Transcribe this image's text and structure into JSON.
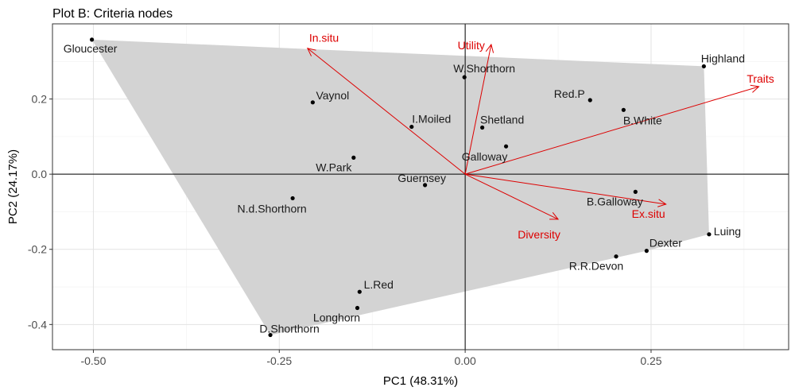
{
  "chart_data": {
    "type": "scatter",
    "title": "Plot B: Criteria nodes",
    "xlabel": "PC1 (48.31%)",
    "ylabel": "PC2 (24.17%)",
    "xlim": [
      -0.555,
      0.435
    ],
    "ylim": [
      -0.467,
      0.4
    ],
    "x_ticks": [
      -0.5,
      -0.25,
      0.0,
      0.25
    ],
    "x_tick_labels": [
      "-0.50",
      "-0.25",
      "0.00",
      "0.25"
    ],
    "y_ticks": [
      -0.4,
      -0.2,
      0.0,
      0.2
    ],
    "y_tick_labels": [
      "-0.4",
      "-0.2",
      "0.0",
      "0.2"
    ],
    "grid": true,
    "hull_color": "#d3d3d3",
    "arrow_color": "#dd0000",
    "points": [
      {
        "name": "Gloucester",
        "x": -0.502,
        "y": 0.358
      },
      {
        "name": "Vaynol",
        "x": -0.205,
        "y": 0.191
      },
      {
        "name": "I.Moiled",
        "x": -0.072,
        "y": 0.126
      },
      {
        "name": "W.Shorthorn",
        "x": -0.001,
        "y": 0.258
      },
      {
        "name": "Red.P",
        "x": 0.168,
        "y": 0.197
      },
      {
        "name": "Highland",
        "x": 0.321,
        "y": 0.287
      },
      {
        "name": "B.White",
        "x": 0.213,
        "y": 0.171
      },
      {
        "name": "Shetland",
        "x": 0.023,
        "y": 0.124
      },
      {
        "name": "Galloway",
        "x": 0.055,
        "y": 0.074
      },
      {
        "name": "W.Park",
        "x": -0.15,
        "y": 0.044
      },
      {
        "name": "Guernsey",
        "x": -0.054,
        "y": -0.029
      },
      {
        "name": "N.d.Shorthorn",
        "x": -0.232,
        "y": -0.064
      },
      {
        "name": "B.Galloway",
        "x": 0.229,
        "y": -0.047
      },
      {
        "name": "Luing",
        "x": 0.328,
        "y": -0.16
      },
      {
        "name": "Dexter",
        "x": 0.244,
        "y": -0.204
      },
      {
        "name": "R.R.Devon",
        "x": 0.203,
        "y": -0.219
      },
      {
        "name": "L.Red",
        "x": -0.142,
        "y": -0.313
      },
      {
        "name": "Longhorn",
        "x": -0.145,
        "y": -0.356
      },
      {
        "name": "D.Shorthorn",
        "x": -0.262,
        "y": -0.428
      }
    ],
    "hull": [
      "Gloucester",
      "Highland",
      "Luing",
      "Dexter",
      "D.Shorthorn"
    ],
    "arrows": [
      {
        "name": "In.situ",
        "x": -0.212,
        "y": 0.335
      },
      {
        "name": "Utility",
        "x": 0.035,
        "y": 0.345
      },
      {
        "name": "Traits",
        "x": 0.395,
        "y": 0.233
      },
      {
        "name": "Ex.situ",
        "x": 0.27,
        "y": -0.08
      },
      {
        "name": "Diversity",
        "x": 0.125,
        "y": -0.12
      }
    ]
  }
}
